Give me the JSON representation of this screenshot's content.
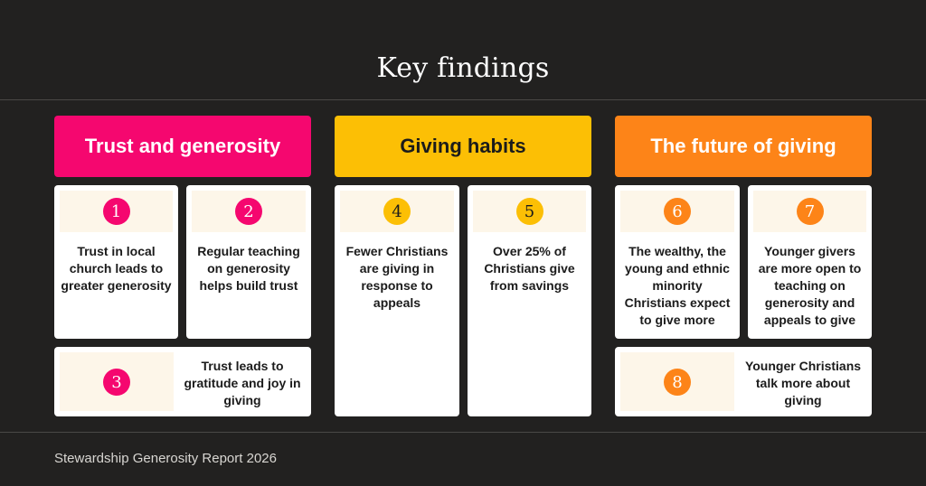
{
  "title": "Key findings",
  "footer": "Stewardship Generosity Report 2026",
  "colors": {
    "background": "#222120",
    "pink": "#f5076f",
    "yellow": "#fcbf05",
    "orange": "#fd8418",
    "band": "#fdf6e9"
  },
  "sections": [
    {
      "label": "Trust and generosity",
      "color": "#f5076f"
    },
    {
      "label": "Giving habits",
      "color": "#fcbf05"
    },
    {
      "label": "The future of giving",
      "color": "#fd8418"
    }
  ],
  "findings": [
    {
      "number": "1",
      "text": "Trust in local church leads to greater generosity"
    },
    {
      "number": "2",
      "text": "Regular teaching on generosity helps build trust"
    },
    {
      "number": "3",
      "text": "Trust leads to gratitude and joy in giving"
    },
    {
      "number": "4",
      "text": "Fewer Christians are giving in response to appeals"
    },
    {
      "number": "5",
      "text": "Over 25% of Christians give from savings"
    },
    {
      "number": "6",
      "text": "The wealthy, the young and ethnic minority Christians expect to give more"
    },
    {
      "number": "7",
      "text": "Younger givers are more open to teaching on generosity and appeals to give"
    },
    {
      "number": "8",
      "text": "Younger Christians talk more about giving"
    }
  ]
}
